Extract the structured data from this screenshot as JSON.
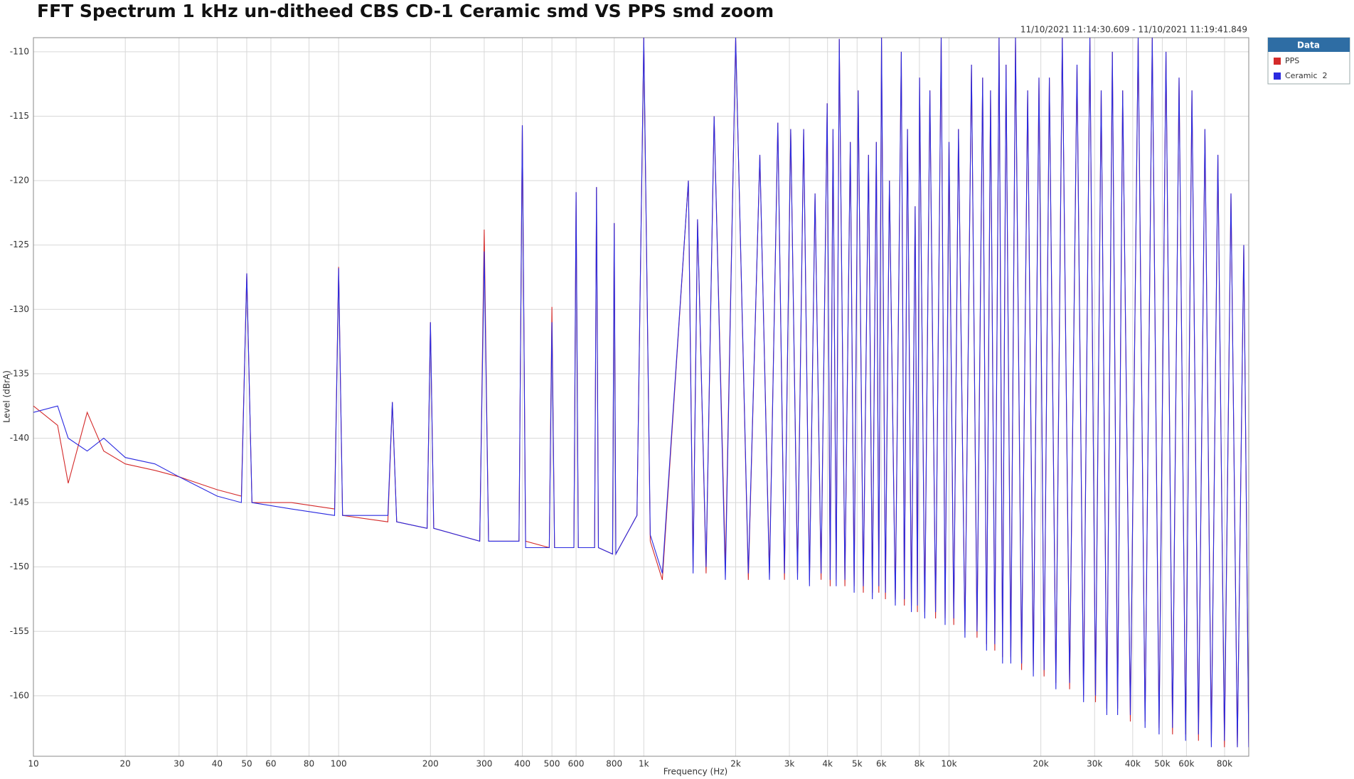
{
  "chart_data": {
    "type": "line",
    "title": "FFT Spectrum 1 kHz un-ditheed CBS CD-1  Ceramic smd VS PPS smd zoom",
    "subtitle": "11/10/2021 11:14:30.609 - 11/10/2021 11:19:41.849",
    "x_label": "Frequency (Hz)",
    "y_label": "Level (dBrA)",
    "legend_title": "Data",
    "legend_position": "outside-top-right",
    "xscale": "log",
    "grid": true,
    "xlim": [
      10,
      96000
    ],
    "ylim": [
      -164.7,
      -108.9
    ],
    "xticks": [
      10,
      20,
      30,
      40,
      50,
      60,
      80,
      100,
      200,
      300,
      400,
      500,
      600,
      800,
      {
        "value": 1000,
        "label": "1k"
      },
      {
        "value": 2000,
        "label": "2k"
      },
      {
        "value": 3000,
        "label": "3k"
      },
      {
        "value": 4000,
        "label": "4k"
      },
      {
        "value": 5000,
        "label": "5k"
      },
      {
        "value": 6000,
        "label": "6k"
      },
      {
        "value": 8000,
        "label": "8k"
      },
      {
        "value": 10000,
        "label": "10k"
      },
      {
        "value": 20000,
        "label": "20k"
      },
      {
        "value": 30000,
        "label": "30k"
      },
      {
        "value": 40000,
        "label": "40k"
      },
      {
        "value": 50000,
        "label": "50k"
      },
      {
        "value": 60000,
        "label": "60k"
      },
      {
        "value": 80000,
        "label": "80k"
      }
    ],
    "yticks": [
      -110,
      -115,
      -120,
      -125,
      -130,
      -135,
      -140,
      -145,
      -150,
      -155,
      -160
    ],
    "x": [
      10,
      12,
      13,
      15,
      17,
      20,
      25,
      30,
      40,
      48,
      50,
      52,
      70,
      97,
      100,
      103,
      145,
      150,
      155,
      195,
      200,
      205,
      290,
      300,
      310,
      390,
      400,
      410,
      490,
      500,
      510,
      590,
      600,
      610,
      690,
      700,
      710,
      790,
      800,
      810,
      950,
      1000,
      1050,
      1150,
      1400,
      1450,
      1500,
      1600,
      1700,
      1850,
      2000,
      2200,
      2400,
      2580,
      2750,
      2890,
      3030,
      3190,
      3340,
      3490,
      3640,
      3810,
      3990,
      4080,
      4170,
      4270,
      4370,
      4560,
      4750,
      4890,
      5040,
      5240,
      5450,
      5610,
      5780,
      5890,
      6010,
      6190,
      6380,
      6670,
      6980,
      7140,
      7310,
      7530,
      7750,
      7880,
      8010,
      8330,
      8660,
      9040,
      9430,
      9710,
      10000,
      10370,
      10740,
      11280,
      11850,
      12360,
      12890,
      13280,
      13680,
      14130,
      14590,
      14980,
      15380,
      15940,
      16520,
      17300,
      18110,
      18900,
      19720,
      20500,
      21320,
      22400,
      23510,
      24850,
      26270,
      27600,
      28960,
      30200,
      31530,
      32900,
      34300,
      35700,
      37080,
      39300,
      41690,
      43900,
      46340,
      48800,
      51420,
      54000,
      56740,
      59600,
      62540,
      65700,
      68990,
      72400,
      76040,
      79900,
      83950,
      88100,
      92470,
      96000
    ],
    "series": [
      {
        "name": "PPS",
        "color": "#d42a2a",
        "values": [
          -137.5,
          -139,
          -143.5,
          -138,
          -141,
          -142,
          -142.5,
          -143,
          -144,
          -144.5,
          -127.2,
          -145,
          -145,
          -145.5,
          -126.7,
          -146,
          -146.5,
          -137.2,
          -146.5,
          -147,
          -131,
          -147,
          -148,
          -123.8,
          -148,
          -148,
          -115.7,
          -148,
          -148.5,
          -129.8,
          -148.5,
          -148.5,
          -120.9,
          -148.5,
          -148.5,
          -120.5,
          -148.5,
          -149,
          -123.3,
          -149,
          -146,
          -108.9,
          -148,
          -151,
          -120,
          -150,
          -123,
          -150.5,
          -115,
          -150,
          -108.9,
          -151,
          -118,
          -150.5,
          -115.5,
          -151,
          -116,
          -150.5,
          -116,
          -151,
          -121,
          -151,
          -114,
          -151.5,
          -116,
          -151,
          -109,
          -151.5,
          -117,
          -151.5,
          -113,
          -152,
          -118,
          -152,
          -117,
          -152,
          -108.9,
          -152.5,
          -120,
          -152.5,
          -110,
          -153,
          -116,
          -153,
          -122,
          -153.5,
          -112,
          -153.5,
          -113,
          -154,
          -108.9,
          -154,
          -117,
          -154.5,
          -116,
          -155,
          -111,
          -155.5,
          -112,
          -156,
          -113,
          -156.5,
          -108.9,
          -157,
          -111,
          -157,
          -108.9,
          -158,
          -113,
          -158,
          -112,
          -158.5,
          -112,
          -159,
          -108.9,
          -159.5,
          -111,
          -160,
          -108.9,
          -160.5,
          -113,
          -161,
          -110,
          -161,
          -113,
          -162,
          -108.9,
          -162,
          -108.9,
          -162.5,
          -110,
          -163,
          -112,
          -163,
          -113,
          -163.5,
          -116,
          -163.5,
          -118,
          -164,
          -121,
          -164,
          -125,
          -164
        ]
      },
      {
        "name": "Ceramic  2",
        "color": "#2a2ae0",
        "values": [
          -138,
          -137.5,
          -140,
          -141,
          -140,
          -141.5,
          -142,
          -143,
          -144.5,
          -145,
          -127.2,
          -145,
          -145.5,
          -146,
          -126.8,
          -146,
          -146,
          -137.2,
          -146.5,
          -147,
          -131,
          -147,
          -148,
          -125.5,
          -148,
          -148,
          -115.7,
          -148.5,
          -148.5,
          -131,
          -148.5,
          -148.5,
          -120.9,
          -148.5,
          -148.5,
          -120.5,
          -148.5,
          -149,
          -123.3,
          -149,
          -146,
          -108.9,
          -147.5,
          -150.5,
          -120,
          -150.5,
          -123,
          -150,
          -115,
          -151,
          -108.9,
          -150.5,
          -118,
          -151,
          -115.5,
          -150.5,
          -116,
          -151,
          -116,
          -151.5,
          -121,
          -150.5,
          -114,
          -151,
          -116,
          -151.5,
          -109,
          -151,
          -117,
          -152,
          -113,
          -151.5,
          -118,
          -152.5,
          -117,
          -151.5,
          -108.9,
          -152,
          -120,
          -153,
          -110,
          -152.5,
          -116,
          -153.5,
          -122,
          -153,
          -112,
          -154,
          -113,
          -153.5,
          -108.9,
          -154.5,
          -117,
          -154,
          -116,
          -155.5,
          -111,
          -155,
          -112,
          -156.5,
          -113,
          -156,
          -108.9,
          -157.5,
          -111,
          -157.5,
          -108.9,
          -157.5,
          -113,
          -158.5,
          -112,
          -158,
          -112,
          -159.5,
          -108.9,
          -159,
          -111,
          -160.5,
          -108.9,
          -160,
          -113,
          -161.5,
          -110,
          -161.5,
          -113,
          -161.5,
          -108.9,
          -162.5,
          -108.9,
          -163,
          -110,
          -162.5,
          -112,
          -163.5,
          -113,
          -163,
          -116,
          -164,
          -118,
          -163.5,
          -121,
          -164,
          -125,
          -164
        ]
      }
    ]
  }
}
